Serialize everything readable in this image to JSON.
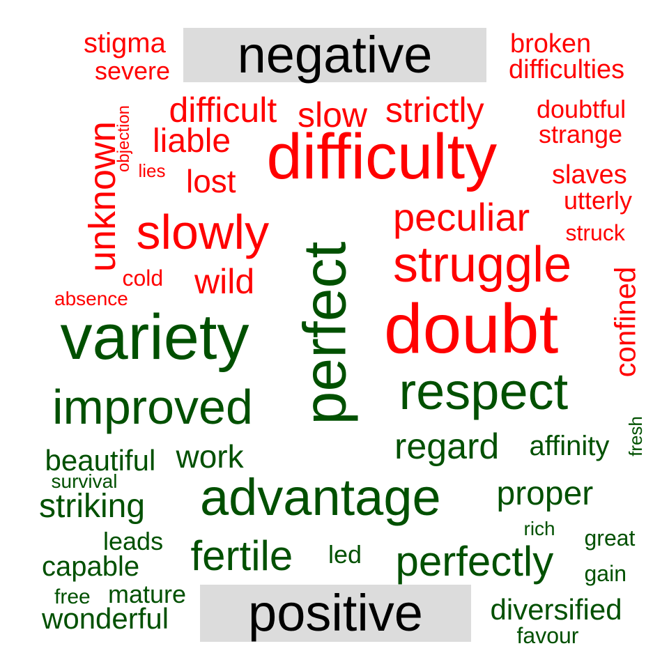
{
  "chart_data": {
    "type": "wordcloud",
    "colors": {
      "negative": "#ff0000",
      "positive": "#005000",
      "header_text": "#000000",
      "header_bg": "#dcdcdc"
    },
    "groups": [
      {
        "label": "negative",
        "color": "#ff0000",
        "words": [
          "difficulty",
          "doubt",
          "struggle",
          "slowly",
          "peculiar",
          "unknown",
          "strictly",
          "slow",
          "difficult",
          "liable",
          "lost",
          "wild",
          "confined",
          "stigma",
          "severe",
          "broken",
          "difficulties",
          "doubtful",
          "strange",
          "slaves",
          "utterly",
          "struck",
          "objection",
          "lies",
          "cold",
          "absence"
        ]
      },
      {
        "label": "positive",
        "color": "#005000",
        "words": [
          "perfect",
          "variety",
          "respect",
          "advantage",
          "improved",
          "perfectly",
          "fertile",
          "regard",
          "proper",
          "affinity",
          "beautiful",
          "work",
          "striking",
          "survival",
          "leads",
          "capable",
          "led",
          "free",
          "mature",
          "wonderful",
          "rich",
          "great",
          "gain",
          "diversified",
          "favour",
          "fresh"
        ]
      }
    ]
  }
}
